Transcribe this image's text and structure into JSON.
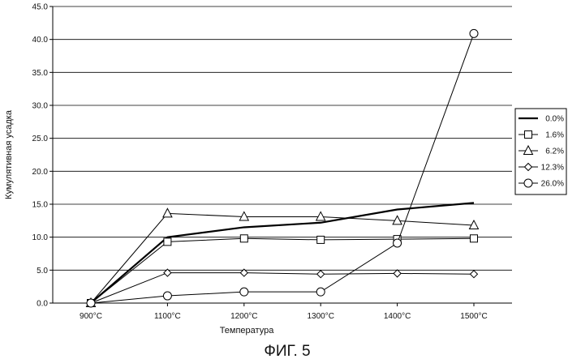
{
  "chart_data": {
    "type": "line",
    "title": "",
    "xlabel": "Температура",
    "ylabel": "Кумулятивная усадка",
    "caption": "ФИГ. 5",
    "categories": [
      "900°C",
      "1100°C",
      "1200°C",
      "1300°C",
      "1400°C",
      "1500°C"
    ],
    "ylim": [
      0,
      45
    ],
    "yticks": [
      "0.0",
      "5.0",
      "10.0",
      "15.0",
      "20.0",
      "25.0",
      "30.0",
      "35.0",
      "40.0",
      "45.0"
    ],
    "grid": "horizontal",
    "legend_position": "right",
    "series": [
      {
        "name": "0.0%",
        "marker": "none",
        "bold": true,
        "values": [
          0.0,
          10.0,
          11.5,
          12.2,
          14.2,
          15.2
        ]
      },
      {
        "name": "1.6%",
        "marker": "square",
        "bold": false,
        "values": [
          0.0,
          9.3,
          9.8,
          9.6,
          9.7,
          9.8
        ]
      },
      {
        "name": "6.2%",
        "marker": "triangle",
        "bold": false,
        "values": [
          0.0,
          13.6,
          13.1,
          13.1,
          12.5,
          11.8
        ]
      },
      {
        "name": "12.3%",
        "marker": "diamond",
        "bold": false,
        "values": [
          0.0,
          4.6,
          4.6,
          4.4,
          4.5,
          4.4
        ]
      },
      {
        "name": "26.0%",
        "marker": "circle",
        "bold": false,
        "values": [
          0.0,
          1.1,
          1.7,
          1.7,
          9.1,
          40.9
        ]
      }
    ]
  }
}
